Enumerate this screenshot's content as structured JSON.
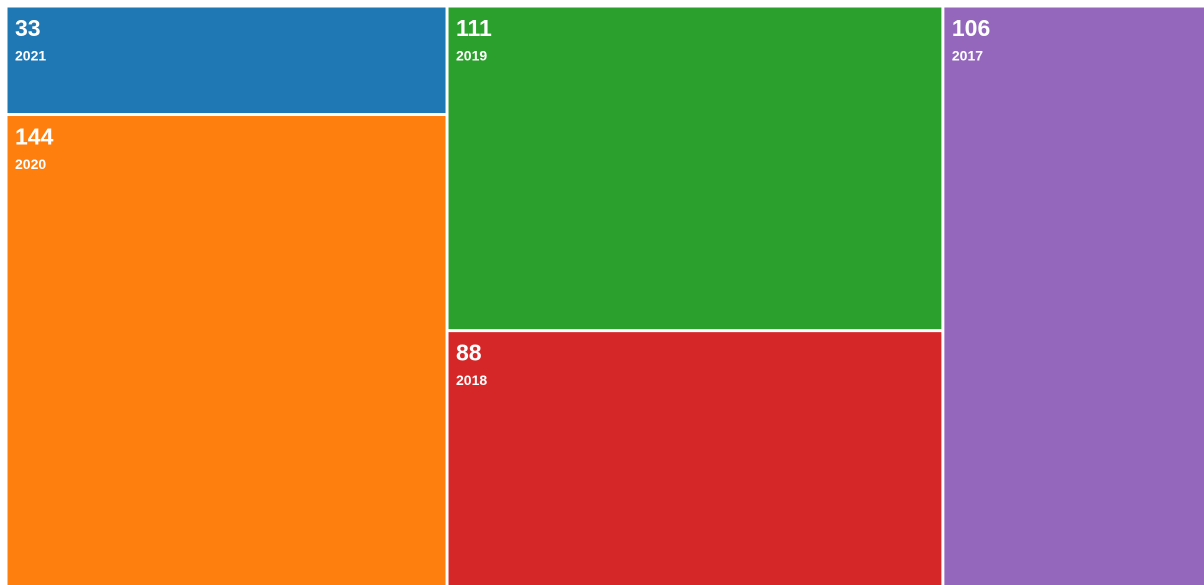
{
  "chart_data": {
    "type": "treemap",
    "categories": [
      "2021",
      "2020",
      "2019",
      "2018",
      "2017"
    ],
    "values": [
      33,
      144,
      111,
      88,
      106
    ],
    "colors": [
      "#1f77b4",
      "#ff7f0e",
      "#2ca02c",
      "#d62728",
      "#9467bd"
    ]
  }
}
